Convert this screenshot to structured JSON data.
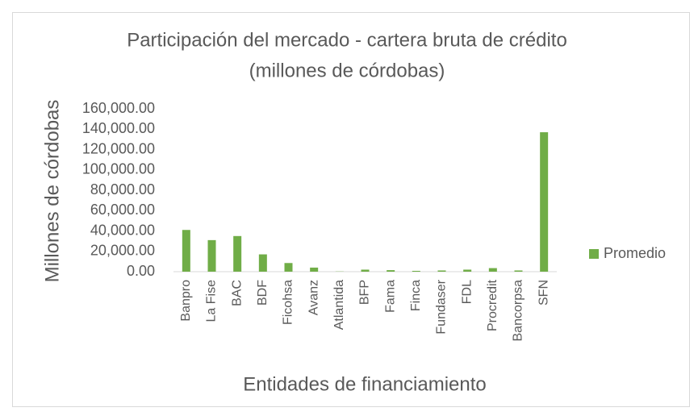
{
  "chart_data": {
    "type": "bar",
    "title": "Participación del mercado - cartera bruta de crédito",
    "subtitle": "(millones de córdobas)",
    "y_label": "Millones de córdobas",
    "x_label": "Entidades de financiamiento",
    "categories": [
      "Banpro",
      "La Fise",
      "BAC",
      "BDF",
      "Ficohsa",
      "Avanz",
      "Atlantida",
      "BFP",
      "Fama",
      "Finca",
      "Fundaser",
      "FDL",
      "Procredit",
      "Bancorpsa",
      "SFN"
    ],
    "series": [
      {
        "name": "Promedio",
        "color": "#70ad47",
        "values": [
          41000,
          31000,
          35000,
          17000,
          8500,
          4000,
          200,
          2000,
          1500,
          800,
          1200,
          2000,
          3500,
          1200,
          137000
        ]
      }
    ],
    "ylim": [
      0,
      160000
    ],
    "yticks": [
      {
        "value": 0,
        "label": "0.00"
      },
      {
        "value": 20000,
        "label": "20,000.00"
      },
      {
        "value": 40000,
        "label": "40,000.00"
      },
      {
        "value": 60000,
        "label": "60,000.00"
      },
      {
        "value": 80000,
        "label": "80,000.00"
      },
      {
        "value": 100000,
        "label": "100,000.00"
      },
      {
        "value": 120000,
        "label": "120,000.00"
      },
      {
        "value": 140000,
        "label": "140,000.00"
      },
      {
        "value": 160000,
        "label": "160,000.00"
      }
    ],
    "grid": false,
    "legend": "right"
  }
}
